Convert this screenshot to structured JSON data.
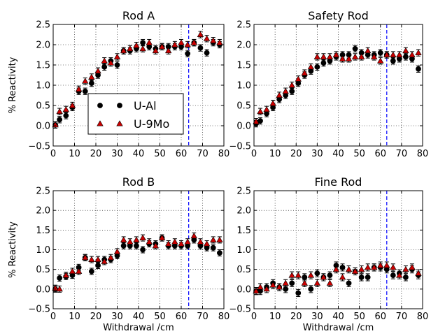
{
  "chart_data": [
    {
      "type": "scatter",
      "title": "Rod A",
      "xlabel": "",
      "ylabel": "% Reactivity",
      "xlim": [
        0,
        80
      ],
      "ylim": [
        -0.5,
        2.5
      ],
      "xticks": [
        "0",
        "10",
        "20",
        "30",
        "40",
        "50",
        "60",
        "70",
        "80"
      ],
      "yticks": [
        "−0.5",
        "0.0",
        "0.5",
        "1.0",
        "1.5",
        "2.0",
        "2.5"
      ],
      "grid": true,
      "legend": {
        "position": "lower-center",
        "entries": [
          "U-Al",
          "U-9Mo"
        ]
      },
      "vline": {
        "x": 63.5,
        "color": "#0000ff"
      },
      "series": [
        {
          "name": "U-Al",
          "color": "#000000",
          "marker": "circle",
          "x": [
            1,
            3,
            6,
            9,
            12,
            15,
            18,
            21,
            24,
            27,
            30,
            33,
            36,
            39,
            42,
            45,
            48,
            51,
            54,
            57,
            60,
            63,
            66,
            69,
            72,
            75,
            78
          ],
          "y": [
            0.02,
            0.15,
            0.25,
            0.45,
            0.85,
            0.85,
            1.05,
            1.25,
            1.45,
            1.6,
            1.5,
            1.85,
            1.85,
            1.9,
            2.05,
            1.95,
            1.9,
            1.95,
            1.95,
            1.95,
            1.95,
            1.78,
            2.05,
            1.92,
            1.8,
            2.05,
            2.0
          ],
          "err": [
            0.08,
            0.08,
            0.08,
            0.08,
            0.08,
            0.08,
            0.08,
            0.08,
            0.08,
            0.08,
            0.08,
            0.08,
            0.08,
            0.08,
            0.08,
            0.08,
            0.08,
            0.08,
            0.08,
            0.08,
            0.08,
            0.08,
            0.08,
            0.08,
            0.08,
            0.08,
            0.08
          ]
        },
        {
          "name": "U-9Mo",
          "color": "#cc0000",
          "marker": "triangle",
          "x": [
            1,
            3,
            6,
            9,
            12,
            15,
            18,
            21,
            24,
            27,
            30,
            33,
            36,
            39,
            42,
            45,
            48,
            51,
            54,
            57,
            60,
            63,
            66,
            69,
            72,
            75,
            78
          ],
          "y": [
            0.02,
            0.35,
            0.4,
            0.5,
            0.9,
            1.1,
            1.2,
            1.35,
            1.6,
            1.55,
            1.7,
            1.85,
            1.9,
            1.98,
            1.9,
            2.05,
            1.85,
            1.95,
            1.85,
            2.0,
            2.05,
            2.0,
            2.05,
            2.25,
            2.15,
            2.1,
            2.05
          ],
          "err": [
            0.08,
            0.08,
            0.08,
            0.08,
            0.08,
            0.08,
            0.08,
            0.08,
            0.08,
            0.08,
            0.08,
            0.08,
            0.08,
            0.08,
            0.08,
            0.08,
            0.08,
            0.08,
            0.08,
            0.08,
            0.08,
            0.08,
            0.08,
            0.08,
            0.08,
            0.08,
            0.08
          ]
        }
      ]
    },
    {
      "type": "scatter",
      "title": "Safety Rod",
      "xlabel": "",
      "ylabel": "",
      "xlim": [
        0,
        80
      ],
      "ylim": [
        -0.5,
        2.5
      ],
      "xticks": [
        "0",
        "10",
        "20",
        "30",
        "40",
        "50",
        "60",
        "70",
        "80"
      ],
      "yticks": [
        "−0.5",
        "0.0",
        "0.5",
        "1.0",
        "1.5",
        "2.0",
        "2.5"
      ],
      "grid": true,
      "vline": {
        "x": 63,
        "color": "#0000ff"
      },
      "series": [
        {
          "name": "U-Al",
          "color": "#000000",
          "marker": "circle",
          "x": [
            1,
            3,
            6,
            9,
            12,
            15,
            18,
            21,
            24,
            27,
            30,
            33,
            36,
            39,
            42,
            45,
            48,
            51,
            54,
            57,
            60,
            63,
            66,
            69,
            72,
            75,
            78
          ],
          "y": [
            0.05,
            0.12,
            0.3,
            0.45,
            0.65,
            0.75,
            0.85,
            1.05,
            1.25,
            1.35,
            1.45,
            1.55,
            1.6,
            1.7,
            1.75,
            1.75,
            1.9,
            1.8,
            1.75,
            1.75,
            1.8,
            1.75,
            1.6,
            1.65,
            1.7,
            1.65,
            1.4
          ],
          "err": [
            0.08,
            0.08,
            0.08,
            0.08,
            0.08,
            0.08,
            0.08,
            0.08,
            0.08,
            0.08,
            0.08,
            0.08,
            0.08,
            0.08,
            0.08,
            0.08,
            0.08,
            0.08,
            0.08,
            0.08,
            0.08,
            0.08,
            0.08,
            0.08,
            0.08,
            0.08,
            0.08
          ]
        },
        {
          "name": "U-9Mo",
          "color": "#cc0000",
          "marker": "triangle",
          "x": [
            1,
            3,
            6,
            9,
            12,
            15,
            18,
            21,
            24,
            27,
            30,
            33,
            36,
            39,
            42,
            45,
            48,
            51,
            54,
            57,
            60,
            63,
            66,
            69,
            72,
            75,
            78
          ],
          "y": [
            0.1,
            0.35,
            0.4,
            0.55,
            0.75,
            0.85,
            1.0,
            1.15,
            1.3,
            1.45,
            1.7,
            1.7,
            1.7,
            1.75,
            1.65,
            1.65,
            1.7,
            1.7,
            1.85,
            1.7,
            1.6,
            1.75,
            1.75,
            1.75,
            1.85,
            1.75,
            1.8
          ],
          "err": [
            0.08,
            0.08,
            0.08,
            0.08,
            0.08,
            0.08,
            0.08,
            0.08,
            0.08,
            0.08,
            0.08,
            0.08,
            0.08,
            0.08,
            0.08,
            0.08,
            0.08,
            0.08,
            0.08,
            0.08,
            0.08,
            0.08,
            0.08,
            0.08,
            0.08,
            0.08,
            0.08
          ]
        }
      ]
    },
    {
      "type": "scatter",
      "title": "Rod B",
      "xlabel": "Withdrawal /cm",
      "ylabel": "% Reactivity",
      "xlim": [
        0,
        80
      ],
      "ylim": [
        -0.5,
        2.5
      ],
      "xticks": [
        "0",
        "10",
        "20",
        "30",
        "40",
        "50",
        "60",
        "70",
        "80"
      ],
      "yticks": [
        "−0.5",
        "0.0",
        "0.5",
        "1.0",
        "1.5",
        "2.0",
        "2.5"
      ],
      "grid": true,
      "vline": {
        "x": 63.5,
        "color": "#0000ff"
      },
      "series": [
        {
          "name": "U-Al",
          "color": "#000000",
          "marker": "circle",
          "x": [
            1,
            3,
            6,
            9,
            12,
            15,
            18,
            21,
            24,
            27,
            30,
            33,
            36,
            39,
            42,
            45,
            48,
            51,
            54,
            57,
            60,
            63,
            66,
            69,
            72,
            75,
            78
          ],
          "y": [
            0.0,
            0.28,
            0.32,
            0.35,
            0.55,
            0.8,
            0.45,
            0.6,
            0.75,
            0.75,
            0.85,
            1.1,
            1.1,
            1.1,
            1.0,
            1.15,
            1.15,
            1.3,
            1.1,
            1.1,
            1.1,
            1.1,
            1.25,
            1.1,
            1.05,
            1.05,
            0.92
          ],
          "err": [
            0.08,
            0.08,
            0.08,
            0.08,
            0.08,
            0.08,
            0.08,
            0.08,
            0.08,
            0.08,
            0.08,
            0.08,
            0.08,
            0.08,
            0.08,
            0.08,
            0.08,
            0.08,
            0.08,
            0.08,
            0.08,
            0.08,
            0.08,
            0.08,
            0.08,
            0.08,
            0.08
          ]
        },
        {
          "name": "U-9Mo",
          "color": "#cc0000",
          "marker": "triangle",
          "x": [
            1,
            3,
            6,
            9,
            12,
            15,
            18,
            21,
            24,
            27,
            30,
            33,
            36,
            39,
            42,
            45,
            48,
            51,
            54,
            57,
            60,
            63,
            66,
            69,
            72,
            75,
            78
          ],
          "y": [
            0.02,
            0.0,
            0.35,
            0.45,
            0.45,
            0.8,
            0.75,
            0.75,
            0.7,
            0.8,
            0.95,
            1.25,
            1.2,
            1.25,
            1.3,
            1.2,
            1.1,
            1.3,
            1.15,
            1.2,
            1.15,
            1.2,
            1.35,
            1.2,
            1.15,
            1.25,
            1.25
          ],
          "err": [
            0.08,
            0.08,
            0.08,
            0.08,
            0.08,
            0.08,
            0.08,
            0.08,
            0.08,
            0.08,
            0.08,
            0.08,
            0.08,
            0.08,
            0.08,
            0.08,
            0.08,
            0.08,
            0.08,
            0.08,
            0.08,
            0.08,
            0.08,
            0.08,
            0.08,
            0.08,
            0.08
          ]
        }
      ]
    },
    {
      "type": "scatter",
      "title": "Fine Rod",
      "xlabel": "Withdrawal /cm",
      "ylabel": "",
      "xlim": [
        0,
        80
      ],
      "ylim": [
        -0.5,
        2.5
      ],
      "xticks": [
        "0",
        "10",
        "20",
        "30",
        "40",
        "50",
        "60",
        "70",
        "80"
      ],
      "yticks": [
        "−0.5",
        "0.0",
        "0.5",
        "1.0",
        "1.5",
        "2.0",
        "2.5"
      ],
      "grid": true,
      "vline": {
        "x": 63,
        "color": "#0000ff"
      },
      "series": [
        {
          "name": "U-Al",
          "color": "#000000",
          "marker": "circle",
          "x": [
            1,
            3,
            6,
            9,
            12,
            15,
            18,
            21,
            24,
            27,
            30,
            33,
            36,
            39,
            42,
            45,
            48,
            51,
            54,
            57,
            60,
            63,
            66,
            69,
            72,
            75,
            78
          ],
          "y": [
            -0.05,
            -0.05,
            0.05,
            0.15,
            0.05,
            0.0,
            0.15,
            -0.1,
            0.3,
            0.0,
            0.4,
            0.3,
            0.35,
            0.6,
            0.55,
            0.15,
            0.45,
            0.3,
            0.3,
            0.55,
            0.55,
            0.5,
            0.35,
            0.4,
            0.3,
            0.5,
            0.35
          ],
          "err": [
            0.09,
            0.09,
            0.09,
            0.09,
            0.09,
            0.09,
            0.09,
            0.09,
            0.09,
            0.09,
            0.09,
            0.09,
            0.09,
            0.09,
            0.09,
            0.09,
            0.09,
            0.09,
            0.09,
            0.09,
            0.09,
            0.09,
            0.09,
            0.09,
            0.09,
            0.09,
            0.09
          ]
        },
        {
          "name": "U-9Mo",
          "color": "#cc0000",
          "marker": "triangle",
          "x": [
            1,
            3,
            6,
            9,
            12,
            15,
            18,
            21,
            24,
            27,
            30,
            33,
            36,
            39,
            42,
            45,
            48,
            51,
            54,
            57,
            60,
            63,
            66,
            69,
            72,
            75,
            78
          ],
          "y": [
            -0.05,
            0.05,
            0.0,
            0.1,
            0.05,
            0.15,
            0.35,
            0.35,
            0.15,
            0.35,
            0.15,
            0.3,
            0.15,
            0.5,
            0.3,
            0.5,
            0.45,
            0.5,
            0.55,
            0.55,
            0.6,
            0.6,
            0.55,
            0.35,
            0.5,
            0.55,
            0.4
          ],
          "err": [
            0.09,
            0.09,
            0.09,
            0.09,
            0.09,
            0.09,
            0.09,
            0.09,
            0.09,
            0.09,
            0.09,
            0.09,
            0.09,
            0.09,
            0.09,
            0.09,
            0.09,
            0.09,
            0.09,
            0.09,
            0.09,
            0.09,
            0.09,
            0.09,
            0.09,
            0.09,
            0.09
          ]
        }
      ]
    }
  ]
}
